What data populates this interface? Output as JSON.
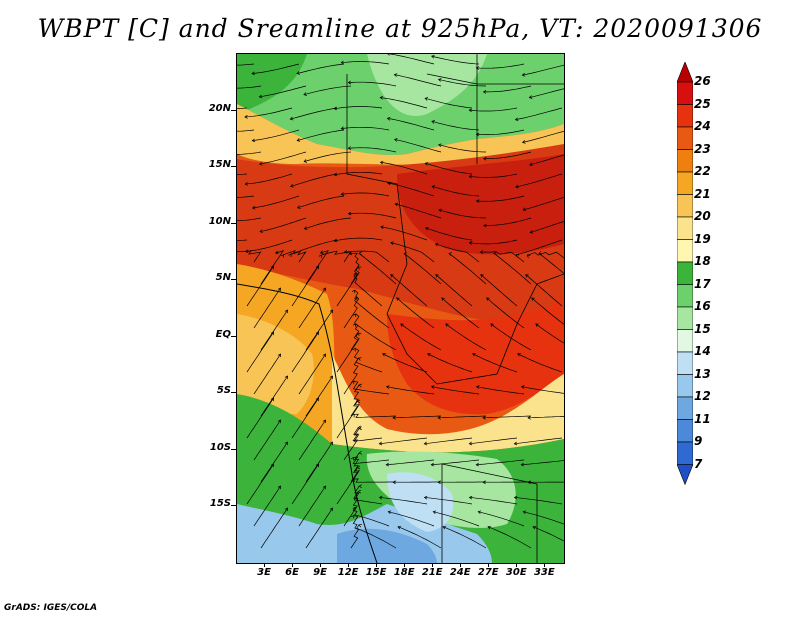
{
  "title": "WBPT [C] and Sreamline at 925hPa, VT: 2020091306",
  "credit": "GrADS: IGES/COLA",
  "y_axis": {
    "labels": [
      "20N",
      "15N",
      "10N",
      "5N",
      "EQ",
      "5S",
      "10S",
      "15S"
    ],
    "values": [
      20,
      15,
      10,
      5,
      0,
      -5,
      -10,
      -15
    ]
  },
  "x_axis": {
    "labels": [
      "3E",
      "6E",
      "9E",
      "12E",
      "15E",
      "18E",
      "21E",
      "24E",
      "27E",
      "30E",
      "33E"
    ],
    "values": [
      3,
      6,
      9,
      12,
      15,
      18,
      21,
      24,
      27,
      30,
      33
    ]
  },
  "map_extent": {
    "lon_range": [
      0,
      35
    ],
    "lat_range": [
      -20,
      25
    ]
  },
  "colorbar": {
    "labels": [
      "26",
      "25",
      "24",
      "23",
      "22",
      "21",
      "20",
      "19",
      "18",
      "17",
      "16",
      "15",
      "14",
      "13",
      "12",
      "11",
      "9",
      "7"
    ],
    "colors": [
      "#b80000",
      "#d80f0f",
      "#e6320f",
      "#e85a14",
      "#ef8010",
      "#f5a623",
      "#f8c455",
      "#fbe38e",
      "#fff6b0",
      "#3cb43c",
      "#6cd06c",
      "#a6e6a0",
      "#e2f8e2",
      "#bfe0f4",
      "#98c8ec",
      "#6ea8e0",
      "#4a8ad8",
      "#2e6ad0",
      "#1f4fc4"
    ]
  },
  "field_regions": [
    {
      "name": "north-green",
      "value": 17
    },
    {
      "name": "sahel-red",
      "value": 24
    },
    {
      "name": "central-red",
      "value": 24
    },
    {
      "name": "west-orange",
      "value": 21
    },
    {
      "name": "southwest-green",
      "value": 16
    },
    {
      "name": "south-blue",
      "value": 13
    }
  ]
}
